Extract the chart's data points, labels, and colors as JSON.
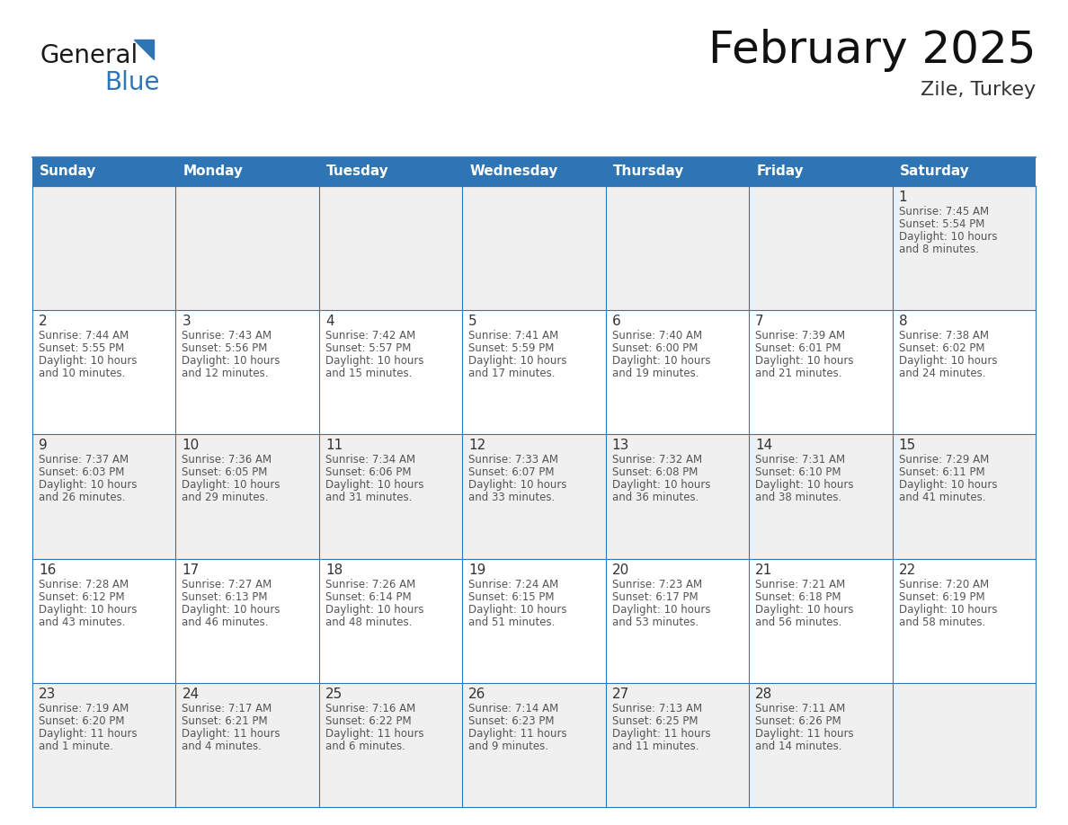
{
  "title": "February 2025",
  "subtitle": "Zile, Turkey",
  "header_bg": "#2E75B6",
  "header_text_color": "#FFFFFF",
  "day_names": [
    "Sunday",
    "Monday",
    "Tuesday",
    "Wednesday",
    "Thursday",
    "Friday",
    "Saturday"
  ],
  "grid_line_color": "#2E75B6",
  "background_color": "#FFFFFF",
  "cell_bg_normal": "#FFFFFF",
  "cell_bg_alt": "#F0F0F0",
  "day_number_color": "#333333",
  "info_text_color": "#555555",
  "calendar": [
    [
      null,
      null,
      null,
      null,
      null,
      null,
      1
    ],
    [
      2,
      3,
      4,
      5,
      6,
      7,
      8
    ],
    [
      9,
      10,
      11,
      12,
      13,
      14,
      15
    ],
    [
      16,
      17,
      18,
      19,
      20,
      21,
      22
    ],
    [
      23,
      24,
      25,
      26,
      27,
      28,
      null
    ]
  ],
  "row_alt": [
    true,
    false,
    true,
    false,
    true
  ],
  "day_data": {
    "1": {
      "sunrise": "7:45 AM",
      "sunset": "5:54 PM",
      "daylight": "10 hours and 8 minutes."
    },
    "2": {
      "sunrise": "7:44 AM",
      "sunset": "5:55 PM",
      "daylight": "10 hours and 10 minutes."
    },
    "3": {
      "sunrise": "7:43 AM",
      "sunset": "5:56 PM",
      "daylight": "10 hours and 12 minutes."
    },
    "4": {
      "sunrise": "7:42 AM",
      "sunset": "5:57 PM",
      "daylight": "10 hours and 15 minutes."
    },
    "5": {
      "sunrise": "7:41 AM",
      "sunset": "5:59 PM",
      "daylight": "10 hours and 17 minutes."
    },
    "6": {
      "sunrise": "7:40 AM",
      "sunset": "6:00 PM",
      "daylight": "10 hours and 19 minutes."
    },
    "7": {
      "sunrise": "7:39 AM",
      "sunset": "6:01 PM",
      "daylight": "10 hours and 21 minutes."
    },
    "8": {
      "sunrise": "7:38 AM",
      "sunset": "6:02 PM",
      "daylight": "10 hours and 24 minutes."
    },
    "9": {
      "sunrise": "7:37 AM",
      "sunset": "6:03 PM",
      "daylight": "10 hours and 26 minutes."
    },
    "10": {
      "sunrise": "7:36 AM",
      "sunset": "6:05 PM",
      "daylight": "10 hours and 29 minutes."
    },
    "11": {
      "sunrise": "7:34 AM",
      "sunset": "6:06 PM",
      "daylight": "10 hours and 31 minutes."
    },
    "12": {
      "sunrise": "7:33 AM",
      "sunset": "6:07 PM",
      "daylight": "10 hours and 33 minutes."
    },
    "13": {
      "sunrise": "7:32 AM",
      "sunset": "6:08 PM",
      "daylight": "10 hours and 36 minutes."
    },
    "14": {
      "sunrise": "7:31 AM",
      "sunset": "6:10 PM",
      "daylight": "10 hours and 38 minutes."
    },
    "15": {
      "sunrise": "7:29 AM",
      "sunset": "6:11 PM",
      "daylight": "10 hours and 41 minutes."
    },
    "16": {
      "sunrise": "7:28 AM",
      "sunset": "6:12 PM",
      "daylight": "10 hours and 43 minutes."
    },
    "17": {
      "sunrise": "7:27 AM",
      "sunset": "6:13 PM",
      "daylight": "10 hours and 46 minutes."
    },
    "18": {
      "sunrise": "7:26 AM",
      "sunset": "6:14 PM",
      "daylight": "10 hours and 48 minutes."
    },
    "19": {
      "sunrise": "7:24 AM",
      "sunset": "6:15 PM",
      "daylight": "10 hours and 51 minutes."
    },
    "20": {
      "sunrise": "7:23 AM",
      "sunset": "6:17 PM",
      "daylight": "10 hours and 53 minutes."
    },
    "21": {
      "sunrise": "7:21 AM",
      "sunset": "6:18 PM",
      "daylight": "10 hours and 56 minutes."
    },
    "22": {
      "sunrise": "7:20 AM",
      "sunset": "6:19 PM",
      "daylight": "10 hours and 58 minutes."
    },
    "23": {
      "sunrise": "7:19 AM",
      "sunset": "6:20 PM",
      "daylight": "11 hours and 1 minute."
    },
    "24": {
      "sunrise": "7:17 AM",
      "sunset": "6:21 PM",
      "daylight": "11 hours and 4 minutes."
    },
    "25": {
      "sunrise": "7:16 AM",
      "sunset": "6:22 PM",
      "daylight": "11 hours and 6 minutes."
    },
    "26": {
      "sunrise": "7:14 AM",
      "sunset": "6:23 PM",
      "daylight": "11 hours and 9 minutes."
    },
    "27": {
      "sunrise": "7:13 AM",
      "sunset": "6:25 PM",
      "daylight": "11 hours and 11 minutes."
    },
    "28": {
      "sunrise": "7:11 AM",
      "sunset": "6:26 PM",
      "daylight": "11 hours and 14 minutes."
    }
  },
  "logo_text1": "General",
  "logo_text2": "Blue",
  "logo_color1": "#1a1a1a",
  "logo_color2": "#2E75B6",
  "logo_triangle_color": "#2E75B6",
  "title_fontsize": 36,
  "subtitle_fontsize": 16,
  "dayname_fontsize": 11,
  "daynumber_fontsize": 11,
  "info_fontsize": 8.5
}
